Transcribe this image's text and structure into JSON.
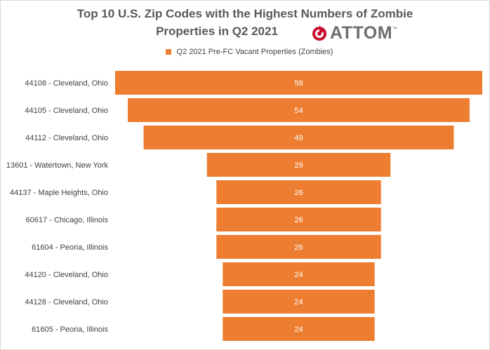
{
  "title_line1": "Top 10 U.S. Zip Codes with the Highest Numbers of Zombie",
  "title_line2": "Properties in Q2 2021",
  "logo": {
    "text": "ATTOM",
    "trademark": "™",
    "icon": "flame-target-icon",
    "color": "#c8102e"
  },
  "legend": {
    "label": "Q2 2021 Pre-FC Vacant Properties (Zombies)",
    "color": "#ed7d31"
  },
  "chart_data": {
    "type": "bar",
    "orientation": "horizontal",
    "style": "funnel (centered bars)",
    "categories": [
      "44108 - Cleveland, Ohio",
      "44105 - Cleveland, Ohio",
      "44112 - Cleveland, Ohio",
      "13601 - Watertown, New York",
      "44137 - Maple Heights, Ohio",
      "60617 - Chicago, Illinois",
      "61604 - Peoria, Illinois",
      "44120 - Cleveland, Ohio",
      "44128 - Cleveland, Ohio",
      "61605 - Peoria, Illinois"
    ],
    "series": [
      {
        "name": "Q2 2021 Pre-FC Vacant Properties (Zombies)",
        "values": [
          58,
          54,
          49,
          29,
          26,
          26,
          26,
          24,
          24,
          24
        ],
        "color": "#ed7d31"
      }
    ],
    "data_labels": true,
    "grid": false,
    "legend_position": "top"
  }
}
